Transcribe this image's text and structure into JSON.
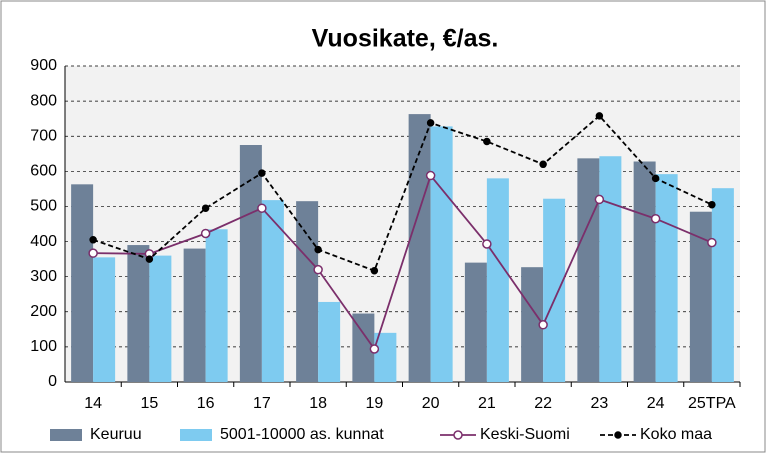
{
  "chart_data": {
    "type": "combo",
    "title": "Vuosikate, €/as.",
    "categories": [
      "14",
      "15",
      "16",
      "17",
      "18",
      "19",
      "20",
      "21",
      "22",
      "23",
      "24",
      "25TPA"
    ],
    "series": [
      {
        "name": "Keuruu",
        "type": "bar",
        "color": "#6e8198",
        "values": [
          563,
          390,
          380,
          675,
          515,
          195,
          763,
          340,
          327,
          637,
          628,
          485
        ]
      },
      {
        "name": "5001-10000 as. kunnat",
        "type": "bar",
        "color": "#7ecbf0",
        "values": [
          355,
          360,
          435,
          518,
          228,
          140,
          728,
          580,
          522,
          643,
          592,
          552
        ]
      },
      {
        "name": "Keski-Suomi",
        "type": "line",
        "color": "#7b2f6b",
        "marker": "hollow",
        "values": [
          367,
          365,
          423,
          495,
          320,
          94,
          588,
          393,
          163,
          520,
          465,
          397
        ]
      },
      {
        "name": "Koko maa",
        "type": "line",
        "color": "#000000",
        "marker": "filled",
        "line_style": "dashed",
        "values": [
          405,
          350,
          495,
          595,
          377,
          317,
          738,
          685,
          620,
          758,
          580,
          505
        ]
      }
    ],
    "ylim": [
      0,
      900
    ],
    "yticks": [
      0,
      100,
      200,
      300,
      400,
      500,
      600,
      700,
      800,
      900
    ],
    "grid": true,
    "legend": "bottom"
  }
}
